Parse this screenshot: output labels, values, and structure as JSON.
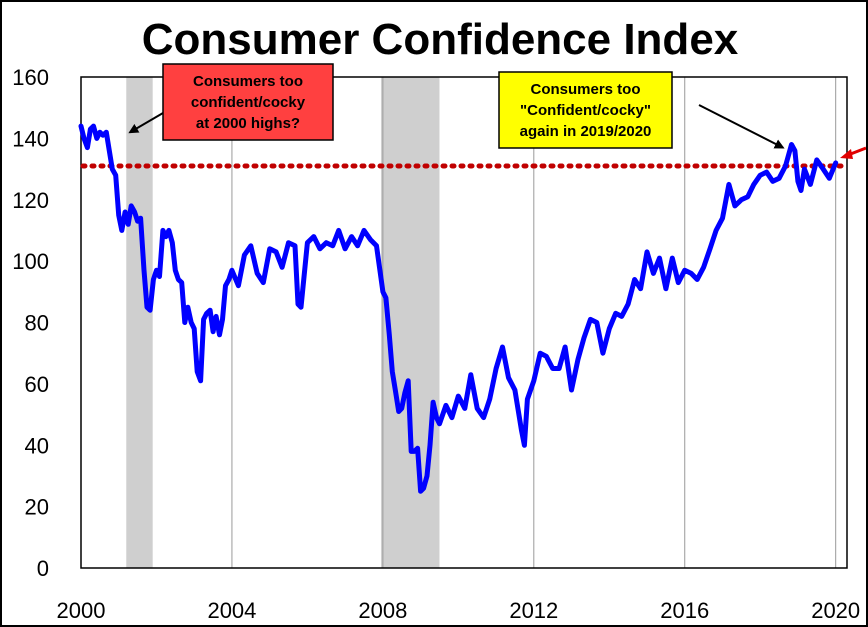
{
  "chart_data": {
    "type": "line",
    "title": "Consumer Confidence Index",
    "xlabel": "",
    "ylabel": "",
    "xlim": [
      2000,
      2020.3
    ],
    "ylim": [
      0,
      160
    ],
    "x_ticks": [
      "2000",
      "2004",
      "2008",
      "2012",
      "2016",
      "2020"
    ],
    "x_tick_values": [
      2000,
      2004,
      2008,
      2012,
      2016,
      2020
    ],
    "y_ticks": [
      "0",
      "20",
      "40",
      "60",
      "80",
      "100",
      "120",
      "140",
      "160"
    ],
    "y_tick_values": [
      0,
      20,
      40,
      60,
      80,
      100,
      120,
      140,
      160
    ],
    "grid": "vertical",
    "legend": "none",
    "line_color": "#0000ff",
    "reference_line": {
      "value": 131,
      "style": "dotted",
      "color": "#c00000"
    },
    "recessions": [
      {
        "start": 2001.2,
        "end": 2001.9
      },
      {
        "start": 2007.95,
        "end": 2009.5
      }
    ],
    "series": [
      {
        "x": [
          2000.0,
          2000.08,
          2000.17,
          2000.25,
          2000.33,
          2000.42,
          2000.5,
          2000.58,
          2000.67,
          2000.75,
          2000.83,
          2000.92,
          2001.0,
          2001.08,
          2001.17,
          2001.25,
          2001.33,
          2001.42,
          2001.5,
          2001.58,
          2001.67,
          2001.75,
          2001.83,
          2001.92,
          2002.0,
          2002.08,
          2002.17,
          2002.25,
          2002.33,
          2002.42,
          2002.5,
          2002.58,
          2002.67,
          2002.75,
          2002.83,
          2002.92,
          2003.0,
          2003.08,
          2003.17,
          2003.25,
          2003.33,
          2003.42,
          2003.5,
          2003.58,
          2003.67,
          2003.75,
          2003.83,
          2003.92,
          2004.0,
          2004.17,
          2004.33,
          2004.5,
          2004.67,
          2004.83,
          2005.0,
          2005.17,
          2005.33,
          2005.5,
          2005.67,
          2005.75,
          2005.83,
          2006.0,
          2006.17,
          2006.33,
          2006.5,
          2006.67,
          2006.83,
          2007.0,
          2007.17,
          2007.33,
          2007.5,
          2007.67,
          2007.83,
          2008.0,
          2008.08,
          2008.17,
          2008.25,
          2008.33,
          2008.42,
          2008.5,
          2008.58,
          2008.67,
          2008.75,
          2008.83,
          2008.92,
          2009.0,
          2009.08,
          2009.17,
          2009.25,
          2009.33,
          2009.42,
          2009.5,
          2009.67,
          2009.83,
          2010.0,
          2010.17,
          2010.33,
          2010.5,
          2010.67,
          2010.83,
          2011.0,
          2011.17,
          2011.33,
          2011.5,
          2011.67,
          2011.75,
          2011.83,
          2012.0,
          2012.17,
          2012.33,
          2012.5,
          2012.67,
          2012.83,
          2013.0,
          2013.17,
          2013.33,
          2013.5,
          2013.67,
          2013.83,
          2014.0,
          2014.17,
          2014.33,
          2014.5,
          2014.67,
          2014.83,
          2015.0,
          2015.17,
          2015.33,
          2015.5,
          2015.67,
          2015.83,
          2016.0,
          2016.17,
          2016.33,
          2016.5,
          2016.67,
          2016.83,
          2017.0,
          2017.17,
          2017.33,
          2017.5,
          2017.67,
          2017.83,
          2018.0,
          2018.17,
          2018.33,
          2018.5,
          2018.67,
          2018.83,
          2018.92,
          2019.0,
          2019.08,
          2019.17,
          2019.33,
          2019.5,
          2019.67,
          2019.83,
          2020.0
        ],
        "y": [
          144,
          140,
          137,
          143,
          144,
          140,
          142,
          141,
          142,
          136,
          130,
          128,
          115,
          110,
          116,
          112,
          118,
          116,
          113,
          114,
          97,
          85,
          84,
          94,
          97,
          95,
          110,
          108,
          110,
          106,
          97,
          94,
          93,
          80,
          85,
          80,
          78,
          64,
          61,
          81,
          83,
          84,
          77,
          82,
          76,
          81,
          92,
          94,
          97,
          92,
          102,
          105,
          96,
          93,
          104,
          103,
          98,
          106,
          105,
          86,
          85,
          106,
          108,
          104,
          106,
          105,
          110,
          104,
          108,
          105,
          110,
          107,
          105,
          90,
          88,
          76,
          64,
          58,
          51,
          52,
          57,
          61,
          38,
          38,
          39,
          25,
          26,
          30,
          40,
          54,
          49,
          47,
          53,
          49,
          56,
          52,
          63,
          52,
          49,
          55,
          65,
          72,
          62,
          58,
          45,
          40,
          55,
          61,
          70,
          69,
          65,
          65,
          72,
          58,
          68,
          75,
          81,
          80,
          70,
          78,
          83,
          82,
          86,
          94,
          91,
          103,
          96,
          101,
          91,
          101,
          93,
          97,
          96,
          94,
          98,
          104,
          110,
          114,
          125,
          118,
          120,
          121,
          125,
          128,
          129,
          126,
          127,
          131,
          138,
          136,
          126,
          123,
          130,
          125,
          133,
          130,
          127,
          132
        ]
      }
    ],
    "annotations": [
      {
        "lines": [
          "Consumers too",
          "confident/cocky",
          "at 2000 highs?"
        ],
        "box_color": "#ff4040",
        "points_to": [
          2001.3,
          142
        ]
      },
      {
        "lines": [
          "Consumers too",
          "\"Confident/cocky\"",
          "again in 2019/2020"
        ],
        "box_color": "#ffff00",
        "points_to": [
          2018.6,
          137
        ]
      }
    ]
  }
}
